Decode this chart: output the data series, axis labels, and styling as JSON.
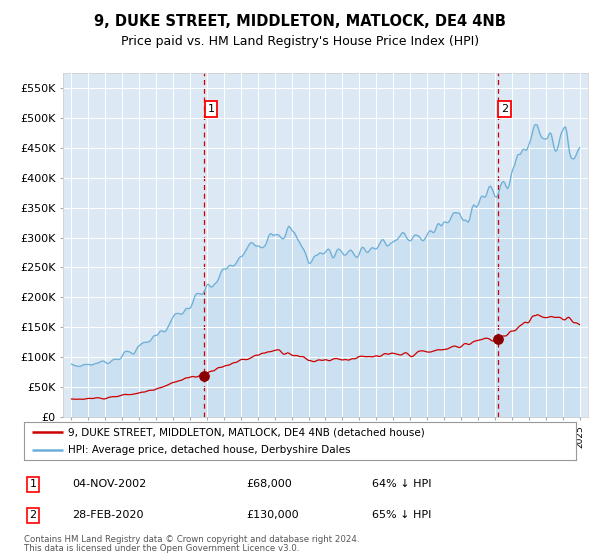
{
  "title": "9, DUKE STREET, MIDDLETON, MATLOCK, DE4 4NB",
  "subtitle": "Price paid vs. HM Land Registry's House Price Index (HPI)",
  "title_fontsize": 10.5,
  "subtitle_fontsize": 9,
  "background_color": "#ffffff",
  "plot_bg_color": "#dce9f5",
  "grid_color": "#ffffff",
  "hpi_color": "#6baed6",
  "hpi_fill_color": "#c5ddf0",
  "price_color": "#cc0000",
  "marker_color": "#8b0000",
  "vline_color": "#cc0000",
  "ylim": [
    0,
    575000
  ],
  "yticks": [
    0,
    50000,
    100000,
    150000,
    200000,
    250000,
    300000,
    350000,
    400000,
    450000,
    500000,
    550000
  ],
  "sale1_date_x": 2002.84,
  "sale1_price": 68000,
  "sale1_label": "1",
  "sale2_date_x": 2020.16,
  "sale2_price": 130000,
  "sale2_label": "2",
  "xmin": 1994.5,
  "xmax": 2025.5,
  "legend_line1": "9, DUKE STREET, MIDDLETON, MATLOCK, DE4 4NB (detached house)",
  "legend_line2": "HPI: Average price, detached house, Derbyshire Dales",
  "table_row1_num": "1",
  "table_row1_date": "04-NOV-2002",
  "table_row1_price": "£68,000",
  "table_row1_pct": "64% ↓ HPI",
  "table_row2_num": "2",
  "table_row2_date": "28-FEB-2020",
  "table_row2_price": "£130,000",
  "table_row2_pct": "65% ↓ HPI",
  "footnote1": "Contains HM Land Registry data © Crown copyright and database right 2024.",
  "footnote2": "This data is licensed under the Open Government Licence v3.0."
}
